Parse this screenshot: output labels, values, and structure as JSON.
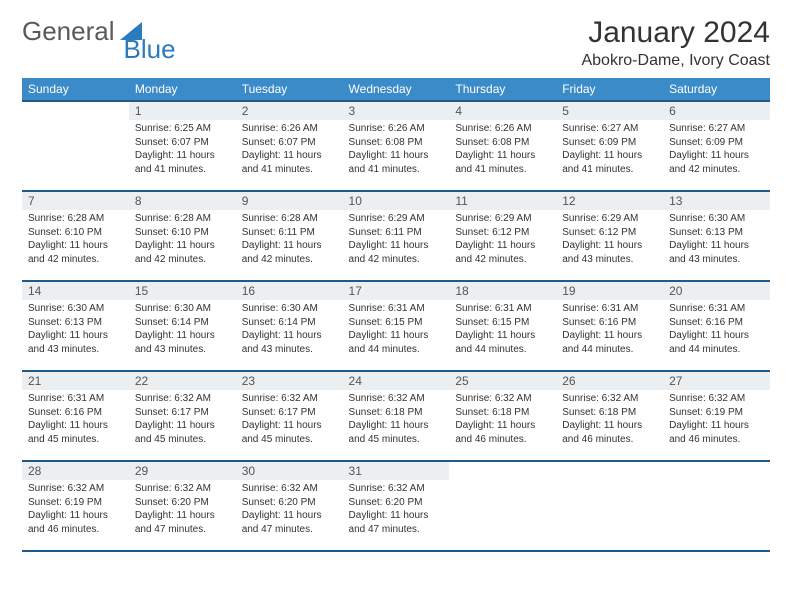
{
  "brand": {
    "part1": "General",
    "part2": "Blue"
  },
  "title": "January 2024",
  "location": "Abokro-Dame, Ivory Coast",
  "colors": {
    "header_bg": "#3b8bc8",
    "header_text": "#ffffff",
    "row_border": "#1f5a8a",
    "daynum_bg": "#eceff1",
    "daynum_text": "#555555",
    "body_text": "#333333",
    "brand_gray": "#5a5a5a",
    "brand_blue": "#2b7bbf",
    "page_bg": "#ffffff"
  },
  "typography": {
    "title_fontsize": 30,
    "location_fontsize": 16,
    "th_fontsize": 12,
    "daynum_fontsize": 12,
    "body_fontsize": 10
  },
  "weekdays": [
    "Sunday",
    "Monday",
    "Tuesday",
    "Wednesday",
    "Thursday",
    "Friday",
    "Saturday"
  ],
  "weeks": [
    [
      null,
      {
        "n": "1",
        "sr": "6:25 AM",
        "ss": "6:07 PM",
        "dl": "11 hours and 41 minutes."
      },
      {
        "n": "2",
        "sr": "6:26 AM",
        "ss": "6:07 PM",
        "dl": "11 hours and 41 minutes."
      },
      {
        "n": "3",
        "sr": "6:26 AM",
        "ss": "6:08 PM",
        "dl": "11 hours and 41 minutes."
      },
      {
        "n": "4",
        "sr": "6:26 AM",
        "ss": "6:08 PM",
        "dl": "11 hours and 41 minutes."
      },
      {
        "n": "5",
        "sr": "6:27 AM",
        "ss": "6:09 PM",
        "dl": "11 hours and 41 minutes."
      },
      {
        "n": "6",
        "sr": "6:27 AM",
        "ss": "6:09 PM",
        "dl": "11 hours and 42 minutes."
      }
    ],
    [
      {
        "n": "7",
        "sr": "6:28 AM",
        "ss": "6:10 PM",
        "dl": "11 hours and 42 minutes."
      },
      {
        "n": "8",
        "sr": "6:28 AM",
        "ss": "6:10 PM",
        "dl": "11 hours and 42 minutes."
      },
      {
        "n": "9",
        "sr": "6:28 AM",
        "ss": "6:11 PM",
        "dl": "11 hours and 42 minutes."
      },
      {
        "n": "10",
        "sr": "6:29 AM",
        "ss": "6:11 PM",
        "dl": "11 hours and 42 minutes."
      },
      {
        "n": "11",
        "sr": "6:29 AM",
        "ss": "6:12 PM",
        "dl": "11 hours and 42 minutes."
      },
      {
        "n": "12",
        "sr": "6:29 AM",
        "ss": "6:12 PM",
        "dl": "11 hours and 43 minutes."
      },
      {
        "n": "13",
        "sr": "6:30 AM",
        "ss": "6:13 PM",
        "dl": "11 hours and 43 minutes."
      }
    ],
    [
      {
        "n": "14",
        "sr": "6:30 AM",
        "ss": "6:13 PM",
        "dl": "11 hours and 43 minutes."
      },
      {
        "n": "15",
        "sr": "6:30 AM",
        "ss": "6:14 PM",
        "dl": "11 hours and 43 minutes."
      },
      {
        "n": "16",
        "sr": "6:30 AM",
        "ss": "6:14 PM",
        "dl": "11 hours and 43 minutes."
      },
      {
        "n": "17",
        "sr": "6:31 AM",
        "ss": "6:15 PM",
        "dl": "11 hours and 44 minutes."
      },
      {
        "n": "18",
        "sr": "6:31 AM",
        "ss": "6:15 PM",
        "dl": "11 hours and 44 minutes."
      },
      {
        "n": "19",
        "sr": "6:31 AM",
        "ss": "6:16 PM",
        "dl": "11 hours and 44 minutes."
      },
      {
        "n": "20",
        "sr": "6:31 AM",
        "ss": "6:16 PM",
        "dl": "11 hours and 44 minutes."
      }
    ],
    [
      {
        "n": "21",
        "sr": "6:31 AM",
        "ss": "6:16 PM",
        "dl": "11 hours and 45 minutes."
      },
      {
        "n": "22",
        "sr": "6:32 AM",
        "ss": "6:17 PM",
        "dl": "11 hours and 45 minutes."
      },
      {
        "n": "23",
        "sr": "6:32 AM",
        "ss": "6:17 PM",
        "dl": "11 hours and 45 minutes."
      },
      {
        "n": "24",
        "sr": "6:32 AM",
        "ss": "6:18 PM",
        "dl": "11 hours and 45 minutes."
      },
      {
        "n": "25",
        "sr": "6:32 AM",
        "ss": "6:18 PM",
        "dl": "11 hours and 46 minutes."
      },
      {
        "n": "26",
        "sr": "6:32 AM",
        "ss": "6:18 PM",
        "dl": "11 hours and 46 minutes."
      },
      {
        "n": "27",
        "sr": "6:32 AM",
        "ss": "6:19 PM",
        "dl": "11 hours and 46 minutes."
      }
    ],
    [
      {
        "n": "28",
        "sr": "6:32 AM",
        "ss": "6:19 PM",
        "dl": "11 hours and 46 minutes."
      },
      {
        "n": "29",
        "sr": "6:32 AM",
        "ss": "6:20 PM",
        "dl": "11 hours and 47 minutes."
      },
      {
        "n": "30",
        "sr": "6:32 AM",
        "ss": "6:20 PM",
        "dl": "11 hours and 47 minutes."
      },
      {
        "n": "31",
        "sr": "6:32 AM",
        "ss": "6:20 PM",
        "dl": "11 hours and 47 minutes."
      },
      null,
      null,
      null
    ]
  ],
  "labels": {
    "sunrise": "Sunrise:",
    "sunset": "Sunset:",
    "daylight": "Daylight:"
  }
}
